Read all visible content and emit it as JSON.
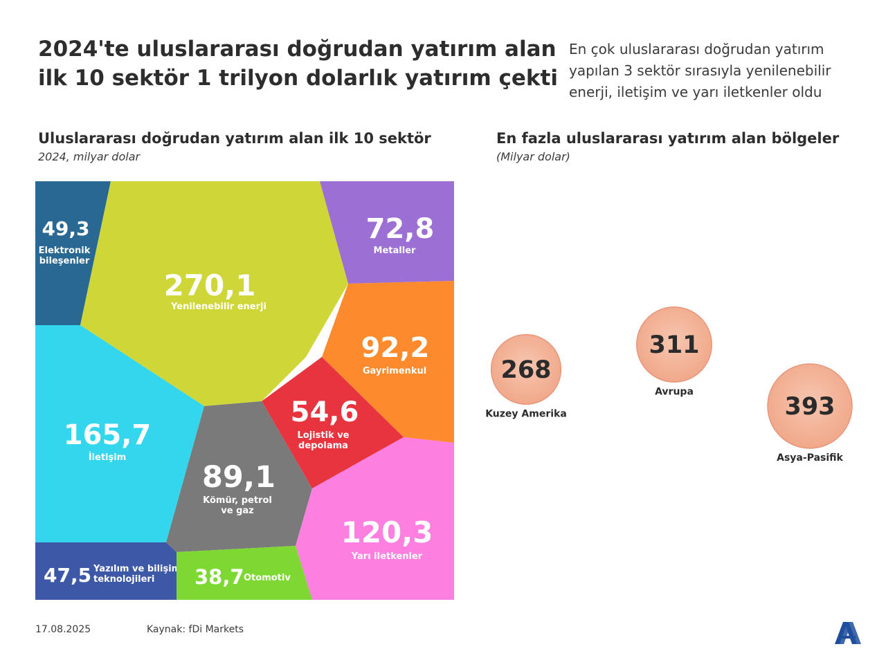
{
  "header": {
    "title": "2024'te uluslararası doğrudan yatırım alan ilk 10 sektör 1 trilyon dolarlık yatırım çekti",
    "subtitle": "En çok uluslararası doğrudan yatırım yapılan 3 sektör sırasıyla yenilenebilir enerji, iletişim ve yarı iletkenler oldu"
  },
  "left_panel": {
    "title": "Uluslararası doğrudan yatırım alan ilk 10 sektör",
    "subtitle": "2024, milyar dolar"
  },
  "right_panel": {
    "title": "En fazla uluslararası yatırım alan bölgeler",
    "subtitle": "(Milyar dolar)"
  },
  "footer": {
    "date": "17.08.2025",
    "source": "Kaynak: fDi Markets"
  },
  "chart_data": [
    {
      "type": "treemap",
      "title": "Uluslararası doğrudan yatırım alan ilk 10 sektör",
      "subtitle": "2024, milyar dolar",
      "items": [
        {
          "id": "elektronik",
          "value": "49,3",
          "label": [
            "Elektronik",
            "bileşenler"
          ],
          "color": "#2a6894"
        },
        {
          "id": "yenilenebilir",
          "value": "270,1",
          "label": [
            "Yenilenebilir enerji"
          ],
          "color": "#cfd637"
        },
        {
          "id": "metaller",
          "value": "72,8",
          "label": [
            "Metaller"
          ],
          "color": "#9b6fd4"
        },
        {
          "id": "gayrimenkul",
          "value": "92,2",
          "label": [
            "Gayrimenkul"
          ],
          "color": "#fd8a2c"
        },
        {
          "id": "iletisim",
          "value": "165,7",
          "label": [
            "İletişim"
          ],
          "color": "#33d6ec"
        },
        {
          "id": "lojistik",
          "value": "54,6",
          "label": [
            "Lojistik ve",
            "depolama"
          ],
          "color": "#e7343e"
        },
        {
          "id": "komur",
          "value": "89,1",
          "label": [
            "Kömür, petrol",
            "ve gaz"
          ],
          "color": "#7a7a7a"
        },
        {
          "id": "yari",
          "value": "120,3",
          "label": [
            "Yarı iletkenler"
          ],
          "color": "#fd7fdf"
        },
        {
          "id": "yazilim",
          "value": "47,5",
          "label": [
            "Yazılım ve bilişim",
            "teknolojileri"
          ],
          "color": "#3d58a6"
        },
        {
          "id": "otomotiv",
          "value": "38,7",
          "label": [
            "Otomotiv"
          ],
          "color": "#7ed832"
        }
      ]
    },
    {
      "type": "bubble",
      "title": "En fazla uluslararası yatırım alan bölgeler",
      "subtitle": "(Milyar dolar)",
      "items": [
        {
          "id": "kuzey-amerika",
          "value": 268,
          "label": "Kuzey Amerika"
        },
        {
          "id": "avrupa",
          "value": 311,
          "label": "Avrupa"
        },
        {
          "id": "asya-pasifik",
          "value": 393,
          "label": "Asya-Pasifik"
        }
      ],
      "color": "#f0a586"
    }
  ]
}
